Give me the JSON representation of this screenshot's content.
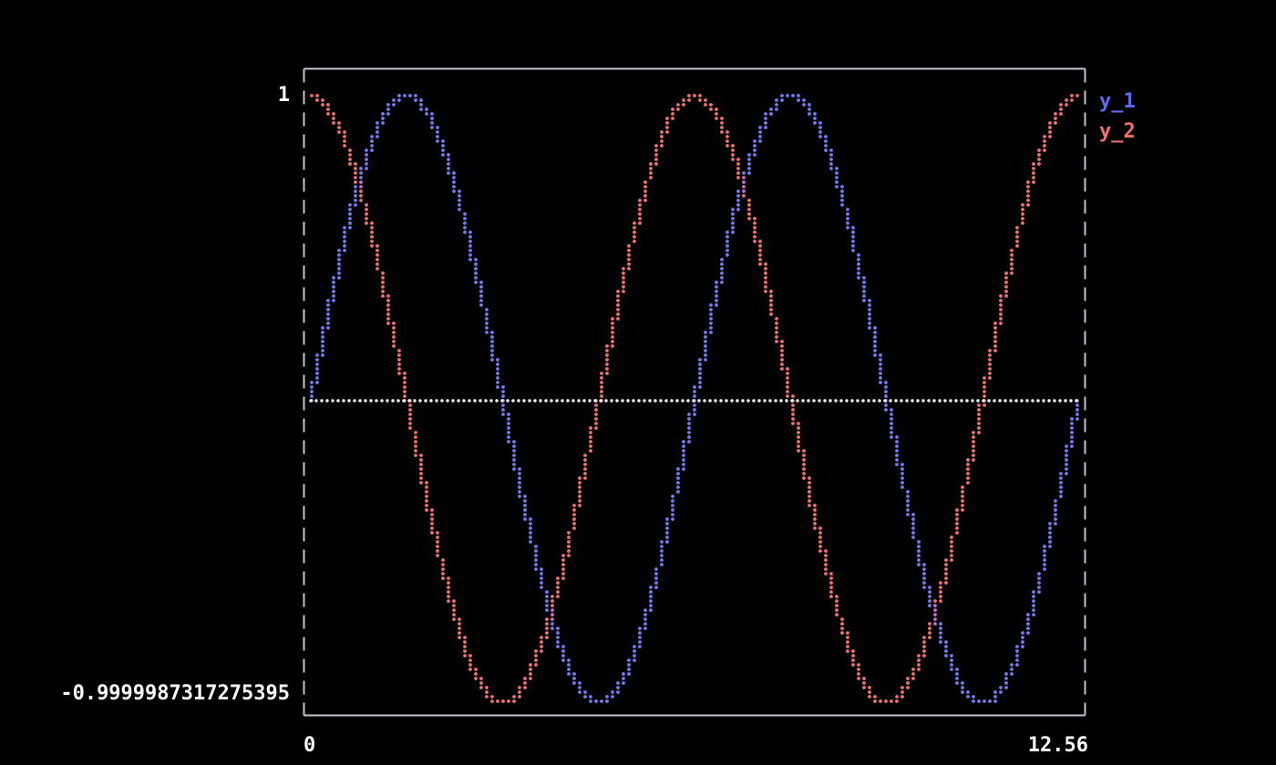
{
  "chart_data": {
    "type": "scatter",
    "title": "",
    "x_range": [
      0,
      12.56
    ],
    "y_range": [
      -0.9999987317275395,
      1
    ],
    "x_tick_labels": [
      "0",
      "12.56"
    ],
    "y_tick_labels": [
      "1",
      "-0.9999987317275395"
    ],
    "series": [
      {
        "name": "y_1",
        "function": "sin",
        "color": "#737df2"
      },
      {
        "name": "y_2",
        "function": "cos",
        "color": "#f2736e"
      }
    ],
    "legend": [
      {
        "label": "y_1",
        "color": "#5f6af0"
      },
      {
        "label": "y_2",
        "color": "#f4716b"
      }
    ],
    "overlap_color": "#cf6bd3",
    "zero_line": {
      "value": 0,
      "color": "#ffffff",
      "style": "dotted"
    },
    "border_color": "#c2c6cf",
    "background_color": "#000000",
    "grid": false,
    "legend_position": "top-right-outside"
  }
}
